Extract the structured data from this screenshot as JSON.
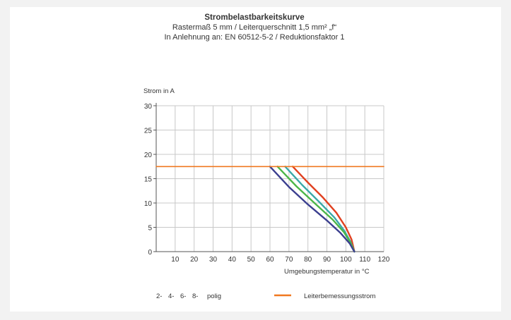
{
  "chart_data": {
    "type": "line",
    "title": "Strombelastbarkeitskurve",
    "subtitle_lines": [
      "Rastermaß 5 mm / Leiterquerschnitt 1,5 mm² „f“",
      "In Anlehnung an: EN 60512-5-2 / Reduktionsfaktor 1"
    ],
    "ylabel": "Strom in A",
    "xlabel": "Umgebungstemperatur in °C",
    "xlim": [
      0,
      120
    ],
    "ylim": [
      0,
      30
    ],
    "x_ticks": [
      "10",
      "20",
      "30",
      "40",
      "50",
      "60",
      "70",
      "80",
      "90",
      "100",
      "110",
      "120"
    ],
    "y_ticks": [
      "0",
      "5",
      "10",
      "15",
      "20",
      "25",
      "30"
    ],
    "grid": true,
    "series": [
      {
        "name": "2-polig",
        "color": "#e0401f",
        "points": [
          [
            72,
            17.5
          ],
          [
            80,
            14.2
          ],
          [
            88,
            11.1
          ],
          [
            95,
            8.0
          ],
          [
            100,
            5.0
          ],
          [
            103,
            2.5
          ],
          [
            104.5,
            0
          ]
        ]
      },
      {
        "name": "4-polig",
        "color": "#3aa8a8",
        "points": [
          [
            68,
            17.5
          ],
          [
            77,
            13.7
          ],
          [
            86,
            10.2
          ],
          [
            94,
            7.0
          ],
          [
            99,
            4.4
          ],
          [
            102.5,
            2.0
          ],
          [
            104.5,
            0
          ]
        ]
      },
      {
        "name": "6-polig",
        "color": "#4cb648",
        "points": [
          [
            64,
            17.5
          ],
          [
            74,
            13.4
          ],
          [
            84,
            9.8
          ],
          [
            93,
            6.6
          ],
          [
            99,
            4.0
          ],
          [
            102.5,
            1.8
          ],
          [
            104.5,
            0
          ]
        ]
      },
      {
        "name": "8-polig",
        "color": "#3b3f8f",
        "points": [
          [
            60,
            17.5
          ],
          [
            70,
            13.3
          ],
          [
            80,
            9.7
          ],
          [
            90,
            6.4
          ],
          [
            97,
            3.9
          ],
          [
            102,
            1.7
          ],
          [
            104.5,
            0
          ]
        ]
      },
      {
        "name": "Leiterbemessungsstrom",
        "color": "#f07820",
        "points": [
          [
            0,
            17.5
          ],
          [
            120,
            17.5
          ]
        ]
      }
    ],
    "legend": {
      "placement": "bottom",
      "pole_items": [
        {
          "label": "2-",
          "color": "#e0401f"
        },
        {
          "label": "4-",
          "color": "#3aa8a8"
        },
        {
          "label": "6-",
          "color": "#4cb648"
        },
        {
          "label": "8-",
          "color": "#3b3f8f"
        }
      ],
      "pole_suffix": "polig",
      "line_item": {
        "label": "Leiterbemessungsstrom",
        "color": "#f07820"
      }
    }
  }
}
